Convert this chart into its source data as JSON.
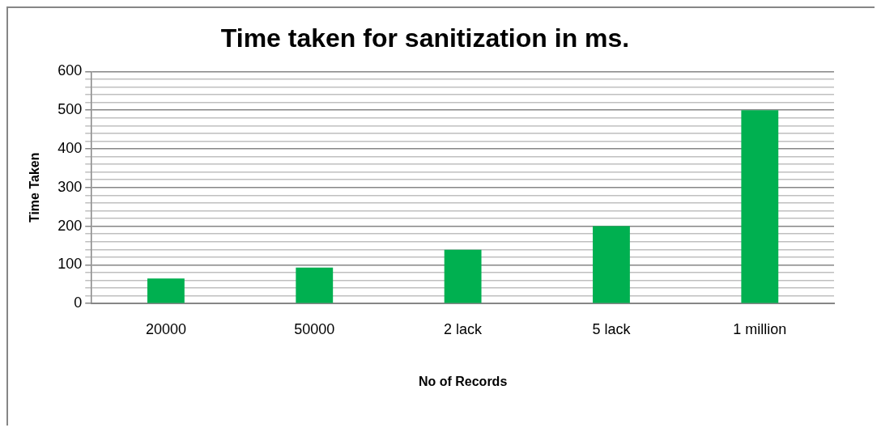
{
  "chart_data": {
    "type": "bar",
    "title": "Time taken for sanitization in ms.",
    "xlabel": "No of Records",
    "ylabel": "Time Taken",
    "categories": [
      "20000",
      "50000",
      "2 lack",
      "5 lack",
      "1 million"
    ],
    "values": [
      65,
      93,
      139,
      200,
      500
    ],
    "color": "#00b050",
    "ylim": [
      0,
      600
    ],
    "yticks": [
      0,
      {
        "value": 20,
        "label": null
      },
      {
        "value": 40,
        "label": null
      },
      {
        "value": 60,
        "label": null
      },
      {
        "value": 80,
        "label": null
      },
      100,
      {
        "value": 120,
        "label": null
      },
      {
        "value": 140,
        "label": null
      },
      {
        "value": 160,
        "label": null
      },
      {
        "value": 180,
        "label": null
      },
      200,
      {
        "value": 220,
        "label": null
      },
      {
        "value": 240,
        "label": null
      },
      {
        "value": 260,
        "label": null
      },
      {
        "value": 280,
        "label": null
      },
      300,
      {
        "value": 320,
        "label": null
      },
      {
        "value": 340,
        "label": null
      },
      {
        "value": 360,
        "label": null
      },
      {
        "value": 380,
        "label": null
      },
      400,
      {
        "value": 420,
        "label": null
      },
      {
        "value": 440,
        "label": null
      },
      {
        "value": 460,
        "label": null
      },
      {
        "value": 480,
        "label": null
      },
      500,
      {
        "value": 520,
        "label": null
      },
      {
        "value": 540,
        "label": null
      },
      {
        "value": 560,
        "label": null
      },
      {
        "value": 580,
        "label": null
      },
      600
    ],
    "grid": "y",
    "legend": false
  }
}
